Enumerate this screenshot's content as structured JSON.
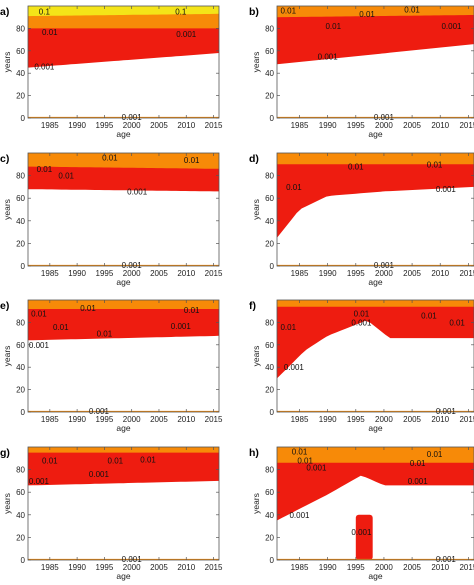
{
  "chart_data": [
    {
      "type": "contour",
      "panel": "a)",
      "x_range": [
        1981,
        2016
      ],
      "y_range": [
        0,
        100
      ],
      "x_ticks": [
        1985,
        1990,
        1995,
        2000,
        2005,
        2010,
        2015
      ],
      "y_ticks": [
        0,
        20,
        40,
        60,
        80
      ],
      "xlabel": "age",
      "ylabel": "years",
      "colors": {
        "level_0.001": "#ee1c10",
        "level_0.01": "#f78a08",
        "level_0.1": "#f4e418"
      },
      "red_band": {
        "x": [
          1981,
          2016
        ],
        "lower_y": [
          45,
          58
        ],
        "upper_y": [
          100,
          100
        ]
      },
      "orange_band": {
        "x": [
          1981,
          2016
        ],
        "lower_y": [
          80,
          80
        ]
      },
      "yellow_band": {
        "x": [
          1981,
          2016
        ],
        "lower_y": [
          91,
          93
        ]
      },
      "contour_labels": [
        {
          "text": "0.1",
          "x": 1984,
          "y": 95
        },
        {
          "text": "0.1",
          "x": 2009,
          "y": 95
        },
        {
          "text": "0.01",
          "x": 1985,
          "y": 77
        },
        {
          "text": "0.001",
          "x": 2010,
          "y": 75
        },
        {
          "text": "0.001",
          "x": 1984,
          "y": 46
        },
        {
          "text": "0.001",
          "x": 2000,
          "y": 1
        }
      ]
    },
    {
      "type": "contour",
      "panel": "b)",
      "x_range": [
        1981,
        2016
      ],
      "y_range": [
        0,
        100
      ],
      "x_ticks": [
        1985,
        1990,
        1995,
        2000,
        2005,
        2010,
        2015
      ],
      "y_ticks": [
        0,
        20,
        40,
        60,
        80
      ],
      "xlabel": "age",
      "ylabel": "years",
      "red_band": {
        "x": [
          1981,
          2016
        ],
        "lower_y": [
          48,
          66
        ],
        "upper_y": [
          100,
          100
        ]
      },
      "orange_band": {
        "x": [
          1981,
          2016
        ],
        "lower_y": [
          90,
          92
        ]
      },
      "contour_labels": [
        {
          "text": "0.01",
          "x": 1983,
          "y": 96
        },
        {
          "text": "0.01",
          "x": 1997,
          "y": 93
        },
        {
          "text": "0.01",
          "x": 2005,
          "y": 97
        },
        {
          "text": "0.01",
          "x": 1991,
          "y": 82
        },
        {
          "text": "0.001",
          "x": 2012,
          "y": 82
        },
        {
          "text": "0.001",
          "x": 1990,
          "y": 55
        },
        {
          "text": "0.001",
          "x": 2000,
          "y": 1
        }
      ]
    },
    {
      "type": "contour",
      "panel": "c)",
      "x_range": [
        1981,
        2016
      ],
      "y_range": [
        0,
        100
      ],
      "x_ticks": [
        1985,
        1990,
        1995,
        2000,
        2005,
        2010,
        2015
      ],
      "y_ticks": [
        0,
        20,
        40,
        60,
        80
      ],
      "xlabel": "age",
      "ylabel": "years",
      "red_band": {
        "x": [
          1981,
          2016
        ],
        "lower_y": [
          68,
          66
        ],
        "upper_y": [
          92,
          92
        ]
      },
      "orange_band": {
        "x": [
          1981,
          2016
        ],
        "lower_y": [
          88,
          86
        ]
      },
      "contour_labels": [
        {
          "text": "0.01",
          "x": 1984,
          "y": 86
        },
        {
          "text": "0.01",
          "x": 1988,
          "y": 80
        },
        {
          "text": "0.01",
          "x": 1996,
          "y": 96
        },
        {
          "text": "0.01",
          "x": 2011,
          "y": 94
        },
        {
          "text": "0.001",
          "x": 2001,
          "y": 66
        },
        {
          "text": "0.001",
          "x": 2000,
          "y": 1
        }
      ]
    },
    {
      "type": "contour",
      "panel": "d)",
      "x_range": [
        1981,
        2016
      ],
      "y_range": [
        0,
        100
      ],
      "x_ticks": [
        1985,
        1990,
        1995,
        2000,
        2005,
        2010,
        2015
      ],
      "y_ticks": [
        0,
        20,
        40,
        60,
        80
      ],
      "xlabel": "age",
      "ylabel": "years",
      "red_band": {
        "x": [
          1981,
          1985,
          1990,
          2000,
          2016
        ],
        "lower_y": [
          25,
          50,
          62,
          66,
          70
        ],
        "upper_y": [
          100,
          100,
          100,
          100,
          100
        ]
      },
      "orange_band": {
        "x": [
          1981,
          2016
        ],
        "lower_y": [
          90,
          90
        ]
      },
      "contour_labels": [
        {
          "text": "0.01",
          "x": 1995,
          "y": 88
        },
        {
          "text": "0.01",
          "x": 2009,
          "y": 90
        },
        {
          "text": "0.01",
          "x": 1984,
          "y": 70
        },
        {
          "text": "0.001",
          "x": 2011,
          "y": 68
        },
        {
          "text": "0.001",
          "x": 2000,
          "y": 1
        }
      ]
    },
    {
      "type": "contour",
      "panel": "e)",
      "x_range": [
        1981,
        2016
      ],
      "y_range": [
        0,
        100
      ],
      "x_ticks": [
        1985,
        1990,
        1995,
        2000,
        2005,
        2010,
        2015
      ],
      "y_ticks": [
        0,
        20,
        40,
        60,
        80
      ],
      "xlabel": "age",
      "ylabel": "years",
      "red_band": {
        "x": [
          1981,
          2016
        ],
        "lower_y": [
          64,
          68
        ],
        "upper_y": [
          95,
          95
        ]
      },
      "orange_band": {
        "x": [
          1981,
          2016
        ],
        "lower_y": [
          92,
          92
        ]
      },
      "contour_labels": [
        {
          "text": "0.01",
          "x": 1983,
          "y": 88
        },
        {
          "text": "0.01",
          "x": 1992,
          "y": 93
        },
        {
          "text": "0.01",
          "x": 2011,
          "y": 91
        },
        {
          "text": "0.01",
          "x": 1987,
          "y": 76
        },
        {
          "text": "0.01",
          "x": 1995,
          "y": 70
        },
        {
          "text": "0.001",
          "x": 2009,
          "y": 77
        },
        {
          "text": "0.001",
          "x": 1983,
          "y": 60
        },
        {
          "text": "0.001",
          "x": 1994,
          "y": 1
        }
      ]
    },
    {
      "type": "contour",
      "panel": "f)",
      "x_range": [
        1981,
        2016
      ],
      "y_range": [
        0,
        100
      ],
      "x_ticks": [
        1985,
        1990,
        1995,
        2000,
        2005,
        2010,
        2015
      ],
      "y_ticks": [
        0,
        20,
        40,
        60,
        80
      ],
      "xlabel": "age",
      "ylabel": "years",
      "red_band": {
        "x": [
          1981,
          1986,
          1990,
          1997,
          2001,
          2016
        ],
        "lower_y": [
          30,
          55,
          68,
          82,
          66,
          66
        ],
        "upper_y": [
          100,
          100,
          100,
          100,
          100,
          100
        ]
      },
      "orange_band": {
        "x": [
          1981,
          2016
        ],
        "lower_y": [
          94,
          94
        ]
      },
      "contour_labels": [
        {
          "text": "0.01",
          "x": 1983,
          "y": 76
        },
        {
          "text": "0.01",
          "x": 1996,
          "y": 88
        },
        {
          "text": "0.01",
          "x": 2008,
          "y": 86
        },
        {
          "text": "0.01",
          "x": 2013,
          "y": 80
        },
        {
          "text": "0.001",
          "x": 1996,
          "y": 80
        },
        {
          "text": "0.001",
          "x": 1984,
          "y": 40
        },
        {
          "text": "0.001",
          "x": 2011,
          "y": 1
        }
      ]
    },
    {
      "type": "contour",
      "panel": "g)",
      "x_range": [
        1981,
        2016
      ],
      "y_range": [
        0,
        100
      ],
      "x_ticks": [
        1985,
        1990,
        1995,
        2000,
        2005,
        2010,
        2015
      ],
      "y_ticks": [
        0,
        20,
        40,
        60,
        80
      ],
      "xlabel": "age",
      "ylabel": "years",
      "red_band": {
        "x": [
          1981,
          2016
        ],
        "lower_y": [
          66,
          70
        ],
        "upper_y": [
          97,
          97
        ]
      },
      "orange_band": {
        "x": [
          1981,
          2016
        ],
        "lower_y": [
          95,
          95
        ]
      },
      "contour_labels": [
        {
          "text": "0.01",
          "x": 1985,
          "y": 88
        },
        {
          "text": "0.01",
          "x": 1997,
          "y": 88
        },
        {
          "text": "0.01",
          "x": 2003,
          "y": 89
        },
        {
          "text": "0.001",
          "x": 1983,
          "y": 70
        },
        {
          "text": "0.001",
          "x": 1994,
          "y": 76
        },
        {
          "text": "0.001",
          "x": 2000,
          "y": 1
        }
      ]
    },
    {
      "type": "contour",
      "panel": "h)",
      "x_range": [
        1981,
        2016
      ],
      "y_range": [
        0,
        100
      ],
      "x_ticks": [
        1985,
        1990,
        1995,
        2000,
        2005,
        2010,
        2015
      ],
      "y_ticks": [
        0,
        20,
        40,
        60,
        80
      ],
      "xlabel": "age",
      "ylabel": "years",
      "red_band": {
        "x": [
          1981,
          1990,
          1996,
          2000,
          2016
        ],
        "lower_y": [
          35,
          58,
          75,
          66,
          66
        ],
        "upper_y": [
          100,
          100,
          100,
          100,
          100
        ]
      },
      "red_column": {
        "x": [
          1995,
          1998
        ],
        "y": [
          0,
          40
        ]
      },
      "orange_band": {
        "x": [
          1981,
          2016
        ],
        "lower_y": [
          86,
          86
        ]
      },
      "contour_labels": [
        {
          "text": "0.01",
          "x": 1985,
          "y": 96
        },
        {
          "text": "0.01",
          "x": 2009,
          "y": 94
        },
        {
          "text": "0.01",
          "x": 1986,
          "y": 88
        },
        {
          "text": "0.01",
          "x": 2006,
          "y": 86
        },
        {
          "text": "0.001",
          "x": 1988,
          "y": 82
        },
        {
          "text": "0.001",
          "x": 2006,
          "y": 70
        },
        {
          "text": "0.001",
          "x": 1985,
          "y": 40
        },
        {
          "text": "0.001",
          "x": 1996,
          "y": 25
        },
        {
          "text": "0.001",
          "x": 2011,
          "y": 1
        }
      ]
    }
  ]
}
